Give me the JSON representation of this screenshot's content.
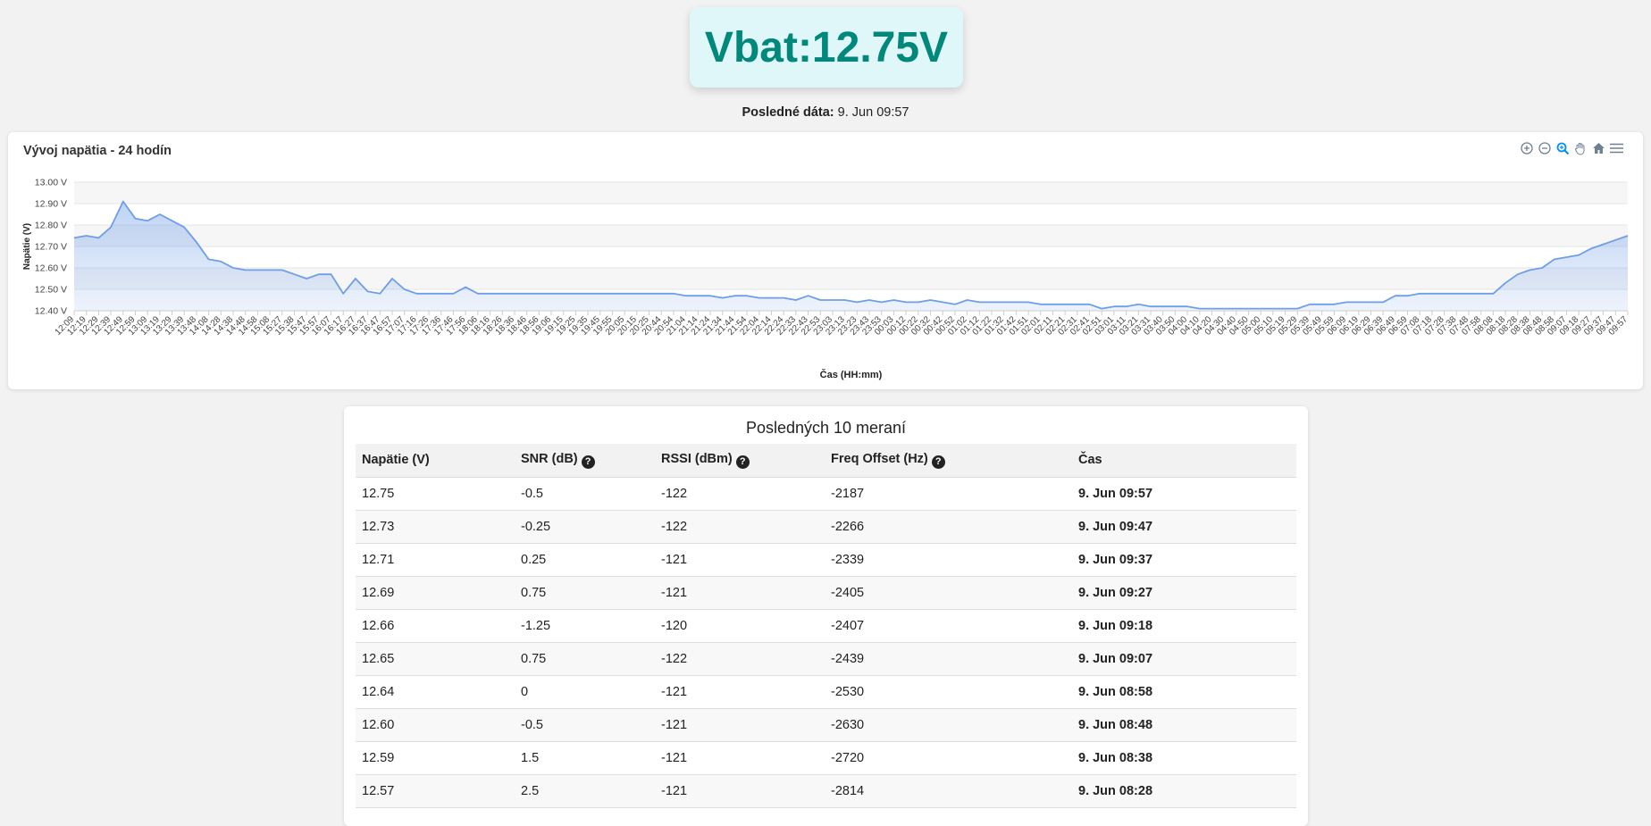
{
  "header": {
    "vbat_label": "Vbat:12.75V",
    "last_data_label": "Posledné dáta:",
    "last_data_value": "9. Jun 09:57"
  },
  "chart_card": {
    "title": "Vývoj napätia - 24 hodín",
    "toolbar": [
      "zoom-in-icon",
      "zoom-out-icon",
      "zoom-selection-icon",
      "pan-hand-icon",
      "home-reset-icon",
      "menu-icon"
    ],
    "accent": "#008ffb",
    "line_color": "#6f9ee8"
  },
  "chart_data": {
    "type": "area",
    "title": "Vývoj napätia - 24 hodín",
    "xlabel": "Čas (HH:mm)",
    "ylabel": "Napätie (V)",
    "ylim": [
      12.4,
      13.0
    ],
    "yticks": [
      "12.40 V",
      "12.50 V",
      "12.60 V",
      "12.70 V",
      "12.80 V",
      "12.90 V",
      "13.00 V"
    ],
    "grid": true,
    "categories": [
      "12:09",
      "12:19",
      "12:29",
      "12:39",
      "12:49",
      "12:59",
      "13:09",
      "13:19",
      "13:29",
      "13:39",
      "13:48",
      "14:08",
      "14:28",
      "14:38",
      "14:48",
      "14:58",
      "15:08",
      "15:27",
      "15:38",
      "15:47",
      "15:57",
      "16:07",
      "16:17",
      "16:27",
      "16:37",
      "16:47",
      "16:57",
      "17:07",
      "17:16",
      "17:26",
      "17:36",
      "17:46",
      "17:56",
      "18:06",
      "18:16",
      "18:26",
      "18:36",
      "18:46",
      "18:56",
      "19:06",
      "19:15",
      "19:25",
      "19:35",
      "19:45",
      "19:55",
      "20:05",
      "20:15",
      "20:25",
      "20:44",
      "20:54",
      "21:04",
      "21:14",
      "21:24",
      "21:34",
      "21:44",
      "21:54",
      "22:04",
      "22:14",
      "22:24",
      "22:33",
      "22:43",
      "22:53",
      "23:03",
      "23:13",
      "23:23",
      "23:43",
      "23:53",
      "00:03",
      "00:12",
      "00:22",
      "00:32",
      "00:42",
      "00:52",
      "01:02",
      "01:12",
      "01:22",
      "01:32",
      "01:42",
      "01:51",
      "02:01",
      "02:11",
      "02:21",
      "02:31",
      "02:41",
      "02:51",
      "03:01",
      "03:11",
      "03:21",
      "03:31",
      "03:40",
      "03:50",
      "04:00",
      "04:10",
      "04:20",
      "04:30",
      "04:40",
      "04:50",
      "05:00",
      "05:10",
      "05:19",
      "05:29",
      "05:39",
      "05:49",
      "05:59",
      "06:09",
      "06:19",
      "06:29",
      "06:39",
      "06:49",
      "06:59",
      "07:08",
      "07:18",
      "07:28",
      "07:38",
      "07:48",
      "07:58",
      "08:08",
      "08:18",
      "08:28",
      "08:38",
      "08:48",
      "08:58",
      "09:07",
      "09:18",
      "09:27",
      "09:37",
      "09:47",
      "09:57"
    ],
    "values": [
      12.74,
      12.75,
      12.74,
      12.79,
      12.91,
      12.83,
      12.82,
      12.85,
      12.82,
      12.79,
      12.72,
      12.64,
      12.63,
      12.6,
      12.59,
      12.59,
      12.59,
      12.59,
      12.57,
      12.55,
      12.57,
      12.57,
      12.48,
      12.55,
      12.49,
      12.48,
      12.55,
      12.5,
      12.48,
      12.48,
      12.48,
      12.48,
      12.51,
      12.48,
      12.48,
      12.48,
      12.48,
      12.48,
      12.48,
      12.48,
      12.48,
      12.48,
      12.48,
      12.48,
      12.48,
      12.48,
      12.48,
      12.48,
      12.48,
      12.48,
      12.47,
      12.47,
      12.47,
      12.46,
      12.47,
      12.47,
      12.46,
      12.46,
      12.46,
      12.45,
      12.47,
      12.45,
      12.45,
      12.45,
      12.44,
      12.45,
      12.44,
      12.45,
      12.44,
      12.44,
      12.45,
      12.44,
      12.43,
      12.45,
      12.44,
      12.44,
      12.44,
      12.44,
      12.44,
      12.43,
      12.43,
      12.43,
      12.43,
      12.43,
      12.41,
      12.42,
      12.42,
      12.43,
      12.42,
      12.42,
      12.42,
      12.42,
      12.41,
      12.41,
      12.41,
      12.41,
      12.41,
      12.41,
      12.41,
      12.41,
      12.41,
      12.43,
      12.43,
      12.43,
      12.44,
      12.44,
      12.44,
      12.44,
      12.47,
      12.47,
      12.48,
      12.48,
      12.48,
      12.48,
      12.48,
      12.48,
      12.48,
      12.53,
      12.57,
      12.59,
      12.6,
      12.64,
      12.65,
      12.66,
      12.69,
      12.71,
      12.73,
      12.75
    ]
  },
  "table": {
    "title": "Posledných 10 meraní",
    "columns": [
      {
        "label": "Napätie (V)",
        "help": false
      },
      {
        "label": "SNR (dB)",
        "help": true
      },
      {
        "label": "RSSI (dBm)",
        "help": true
      },
      {
        "label": "Freq Offset (Hz)",
        "help": true
      },
      {
        "label": "Čas",
        "help": false
      }
    ],
    "help_glyph": "?",
    "rows": [
      [
        "12.75",
        "-0.5",
        "-122",
        "-2187",
        "9. Jun 09:57"
      ],
      [
        "12.73",
        "-0.25",
        "-122",
        "-2266",
        "9. Jun 09:47"
      ],
      [
        "12.71",
        "0.25",
        "-121",
        "-2339",
        "9. Jun 09:37"
      ],
      [
        "12.69",
        "0.75",
        "-121",
        "-2405",
        "9. Jun 09:27"
      ],
      [
        "12.66",
        "-1.25",
        "-120",
        "-2407",
        "9. Jun 09:18"
      ],
      [
        "12.65",
        "0.75",
        "-122",
        "-2439",
        "9. Jun 09:07"
      ],
      [
        "12.64",
        "0",
        "-121",
        "-2530",
        "9. Jun 08:58"
      ],
      [
        "12.60",
        "-0.5",
        "-121",
        "-2630",
        "9. Jun 08:48"
      ],
      [
        "12.59",
        "1.5",
        "-121",
        "-2720",
        "9. Jun 08:38"
      ],
      [
        "12.57",
        "2.5",
        "-121",
        "-2814",
        "9. Jun 08:28"
      ]
    ]
  }
}
